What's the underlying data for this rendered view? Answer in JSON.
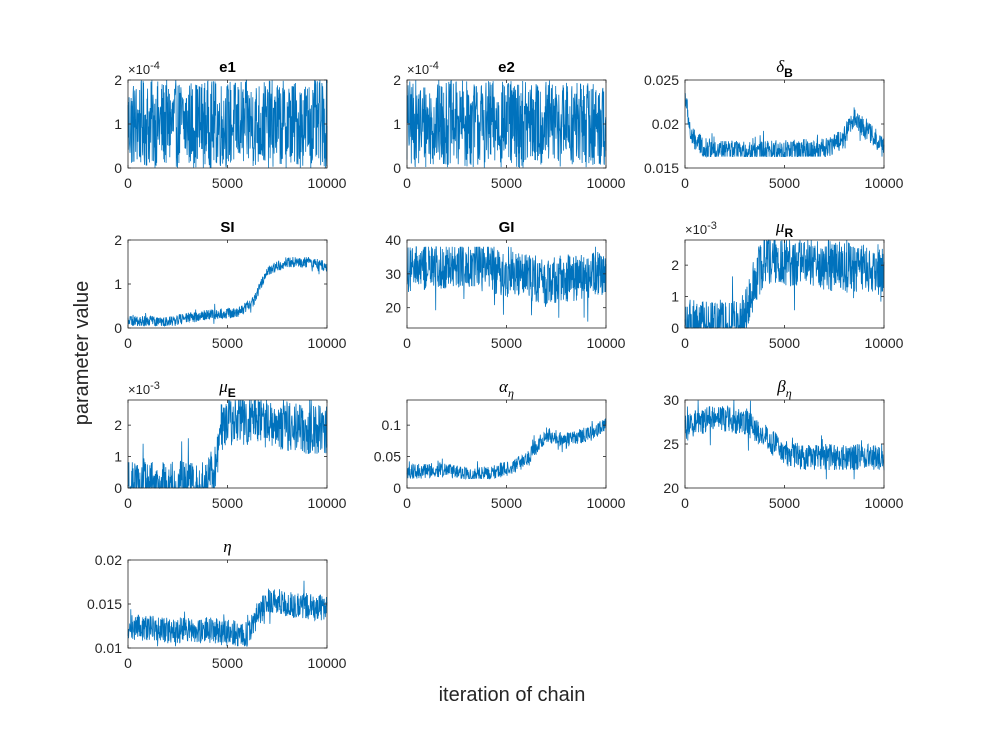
{
  "figure": {
    "xlabel": "iteration of chain",
    "ylabel": "parameter value",
    "line_color": "#0072BD"
  },
  "chart_data": [
    {
      "type": "line",
      "title": "e1",
      "title_kind": "text",
      "xlim": [
        0,
        10000
      ],
      "ylim": [
        0,
        2
      ],
      "y_multiplier": "×10",
      "y_exponent": "-4",
      "xticks": [
        "0",
        "5000",
        "10000"
      ],
      "yticks": [
        {
          "v": 0,
          "label": "0"
        },
        {
          "v": 1,
          "label": "1"
        },
        {
          "v": 2,
          "label": "2"
        }
      ],
      "pattern": "uniform",
      "series": [
        {
          "x": [
            0,
            10000
          ],
          "y_range": [
            0,
            2
          ]
        }
      ]
    },
    {
      "type": "line",
      "title": "e2",
      "title_kind": "text",
      "xlim": [
        0,
        10000
      ],
      "ylim": [
        0,
        2
      ],
      "y_multiplier": "×10",
      "y_exponent": "-4",
      "xticks": [
        "0",
        "5000",
        "10000"
      ],
      "yticks": [
        {
          "v": 0,
          "label": "0"
        },
        {
          "v": 1,
          "label": "1"
        },
        {
          "v": 2,
          "label": "2"
        }
      ],
      "pattern": "uniform",
      "series": [
        {
          "x": [
            0,
            10000
          ],
          "y_range": [
            0,
            2
          ]
        }
      ]
    },
    {
      "type": "line",
      "title": "δ",
      "title_sub": "B",
      "title_kind": "greek",
      "xlim": [
        0,
        10000
      ],
      "ylim": [
        0.015,
        0.025
      ],
      "xticks": [
        "0",
        "5000",
        "10000"
      ],
      "yticks": [
        {
          "v": 0.015,
          "label": "0.015"
        },
        {
          "v": 0.02,
          "label": "0.02"
        },
        {
          "v": 0.025,
          "label": "0.025"
        }
      ],
      "pattern": "trace",
      "keypoints": [
        [
          0,
          0.0235
        ],
        [
          300,
          0.0185
        ],
        [
          1000,
          0.0172
        ],
        [
          3000,
          0.0168
        ],
        [
          5000,
          0.017
        ],
        [
          7000,
          0.0172
        ],
        [
          8000,
          0.0185
        ],
        [
          8500,
          0.021
        ],
        [
          9000,
          0.0195
        ],
        [
          10000,
          0.0175
        ]
      ],
      "floor": 0.0163,
      "ceil": 0.0235,
      "noise": 0.0012
    },
    {
      "type": "line",
      "title": "SI",
      "title_kind": "text",
      "xlim": [
        0,
        10000
      ],
      "ylim": [
        0,
        2
      ],
      "xticks": [
        "0",
        "5000",
        "10000"
      ],
      "yticks": [
        {
          "v": 0,
          "label": "0"
        },
        {
          "v": 1,
          "label": "1"
        },
        {
          "v": 2,
          "label": "2"
        }
      ],
      "pattern": "trace",
      "keypoints": [
        [
          0,
          0.15
        ],
        [
          2000,
          0.15
        ],
        [
          4000,
          0.3
        ],
        [
          5500,
          0.35
        ],
        [
          6300,
          0.6
        ],
        [
          7000,
          1.3
        ],
        [
          8000,
          1.5
        ],
        [
          9000,
          1.5
        ],
        [
          10000,
          1.4
        ]
      ],
      "floor": 0.05,
      "ceil": 1.8,
      "noise": 0.12
    },
    {
      "type": "line",
      "title": "GI",
      "title_kind": "text",
      "xlim": [
        0,
        10000
      ],
      "ylim": [
        14,
        40
      ],
      "xticks": [
        "0",
        "5000",
        "10000"
      ],
      "yticks": [
        {
          "v": 20,
          "label": "20"
        },
        {
          "v": 30,
          "label": "30"
        },
        {
          "v": 40,
          "label": "40"
        }
      ],
      "pattern": "trace",
      "keypoints": [
        [
          0,
          31
        ],
        [
          3000,
          33
        ],
        [
          5000,
          30
        ],
        [
          7000,
          28
        ],
        [
          10000,
          30
        ]
      ],
      "floor": 14,
      "ceil": 38,
      "noise": 7
    },
    {
      "type": "line",
      "title": "μ",
      "title_sub": "R",
      "title_kind": "greek",
      "xlim": [
        0,
        10000
      ],
      "ylim": [
        0,
        2.8
      ],
      "y_multiplier": "×10",
      "y_exponent": "-3",
      "xticks": [
        "0",
        "5000",
        "10000"
      ],
      "yticks": [
        {
          "v": 0,
          "label": "0"
        },
        {
          "v": 1,
          "label": "1"
        },
        {
          "v": 2,
          "label": "2"
        }
      ],
      "pattern": "trace",
      "keypoints": [
        [
          0,
          0.1
        ],
        [
          2500,
          0.1
        ],
        [
          3000,
          0.3
        ],
        [
          3500,
          1.5
        ],
        [
          4000,
          2.2
        ],
        [
          10000,
          1.8
        ]
      ],
      "floor": 0,
      "ceil": 2.8,
      "noise": 0.8
    },
    {
      "type": "line",
      "title": "μ",
      "title_sub": "E",
      "title_kind": "greek",
      "xlim": [
        0,
        10000
      ],
      "ylim": [
        0,
        2.8
      ],
      "y_multiplier": "×10",
      "y_exponent": "-3",
      "xticks": [
        "0",
        "5000",
        "10000"
      ],
      "yticks": [
        {
          "v": 0,
          "label": "0"
        },
        {
          "v": 1,
          "label": "1"
        },
        {
          "v": 2,
          "label": "2"
        }
      ],
      "pattern": "trace",
      "keypoints": [
        [
          0,
          0.05
        ],
        [
          3800,
          0.05
        ],
        [
          4400,
          0.6
        ],
        [
          4700,
          2.0
        ],
        [
          5500,
          2.2
        ],
        [
          10000,
          1.8
        ]
      ],
      "floor": 0,
      "ceil": 2.8,
      "noise": 0.8
    },
    {
      "type": "line",
      "title": "α",
      "title_sub": "η",
      "title_kind": "greek",
      "xlim": [
        0,
        10000
      ],
      "ylim": [
        0,
        0.14
      ],
      "xticks": [
        "0",
        "5000",
        "10000"
      ],
      "yticks": [
        {
          "v": 0,
          "label": "0"
        },
        {
          "v": 0.05,
          "label": "0.05"
        },
        {
          "v": 0.1,
          "label": "0.1"
        }
      ],
      "pattern": "trace",
      "keypoints": [
        [
          0,
          0.025
        ],
        [
          2000,
          0.03
        ],
        [
          3500,
          0.02
        ],
        [
          5000,
          0.03
        ],
        [
          6000,
          0.045
        ],
        [
          7000,
          0.085
        ],
        [
          8000,
          0.075
        ],
        [
          9000,
          0.085
        ],
        [
          10000,
          0.1
        ]
      ],
      "floor": 0.015,
      "ceil": 0.135,
      "noise": 0.012
    },
    {
      "type": "line",
      "title": "β",
      "title_sub": "η",
      "title_kind": "greek",
      "xlim": [
        0,
        10000
      ],
      "ylim": [
        20,
        30
      ],
      "xticks": [
        "0",
        "5000",
        "10000"
      ],
      "yticks": [
        {
          "v": 20,
          "label": "20"
        },
        {
          "v": 25,
          "label": "25"
        },
        {
          "v": 30,
          "label": "30"
        }
      ],
      "pattern": "trace",
      "keypoints": [
        [
          0,
          27
        ],
        [
          1500,
          28
        ],
        [
          3000,
          27.5
        ],
        [
          4000,
          26
        ],
        [
          5000,
          24
        ],
        [
          6000,
          23.5
        ],
        [
          8000,
          23.5
        ],
        [
          10000,
          23.5
        ]
      ],
      "floor": 21,
      "ceil": 30,
      "noise": 1.5
    },
    {
      "type": "line",
      "title": "η",
      "title_kind": "greek",
      "xlim": [
        0,
        10000
      ],
      "ylim": [
        0.01,
        0.02
      ],
      "xticks": [
        "0",
        "5000",
        "10000"
      ],
      "yticks": [
        {
          "v": 0.01,
          "label": "0.01"
        },
        {
          "v": 0.015,
          "label": "0.015"
        },
        {
          "v": 0.02,
          "label": "0.02"
        }
      ],
      "pattern": "trace",
      "keypoints": [
        [
          0,
          0.0125
        ],
        [
          2000,
          0.012
        ],
        [
          4000,
          0.012
        ],
        [
          6000,
          0.0115
        ],
        [
          7000,
          0.0155
        ],
        [
          8000,
          0.015
        ],
        [
          10000,
          0.0145
        ]
      ],
      "floor": 0.0102,
      "ceil": 0.019,
      "noise": 0.0015
    }
  ]
}
